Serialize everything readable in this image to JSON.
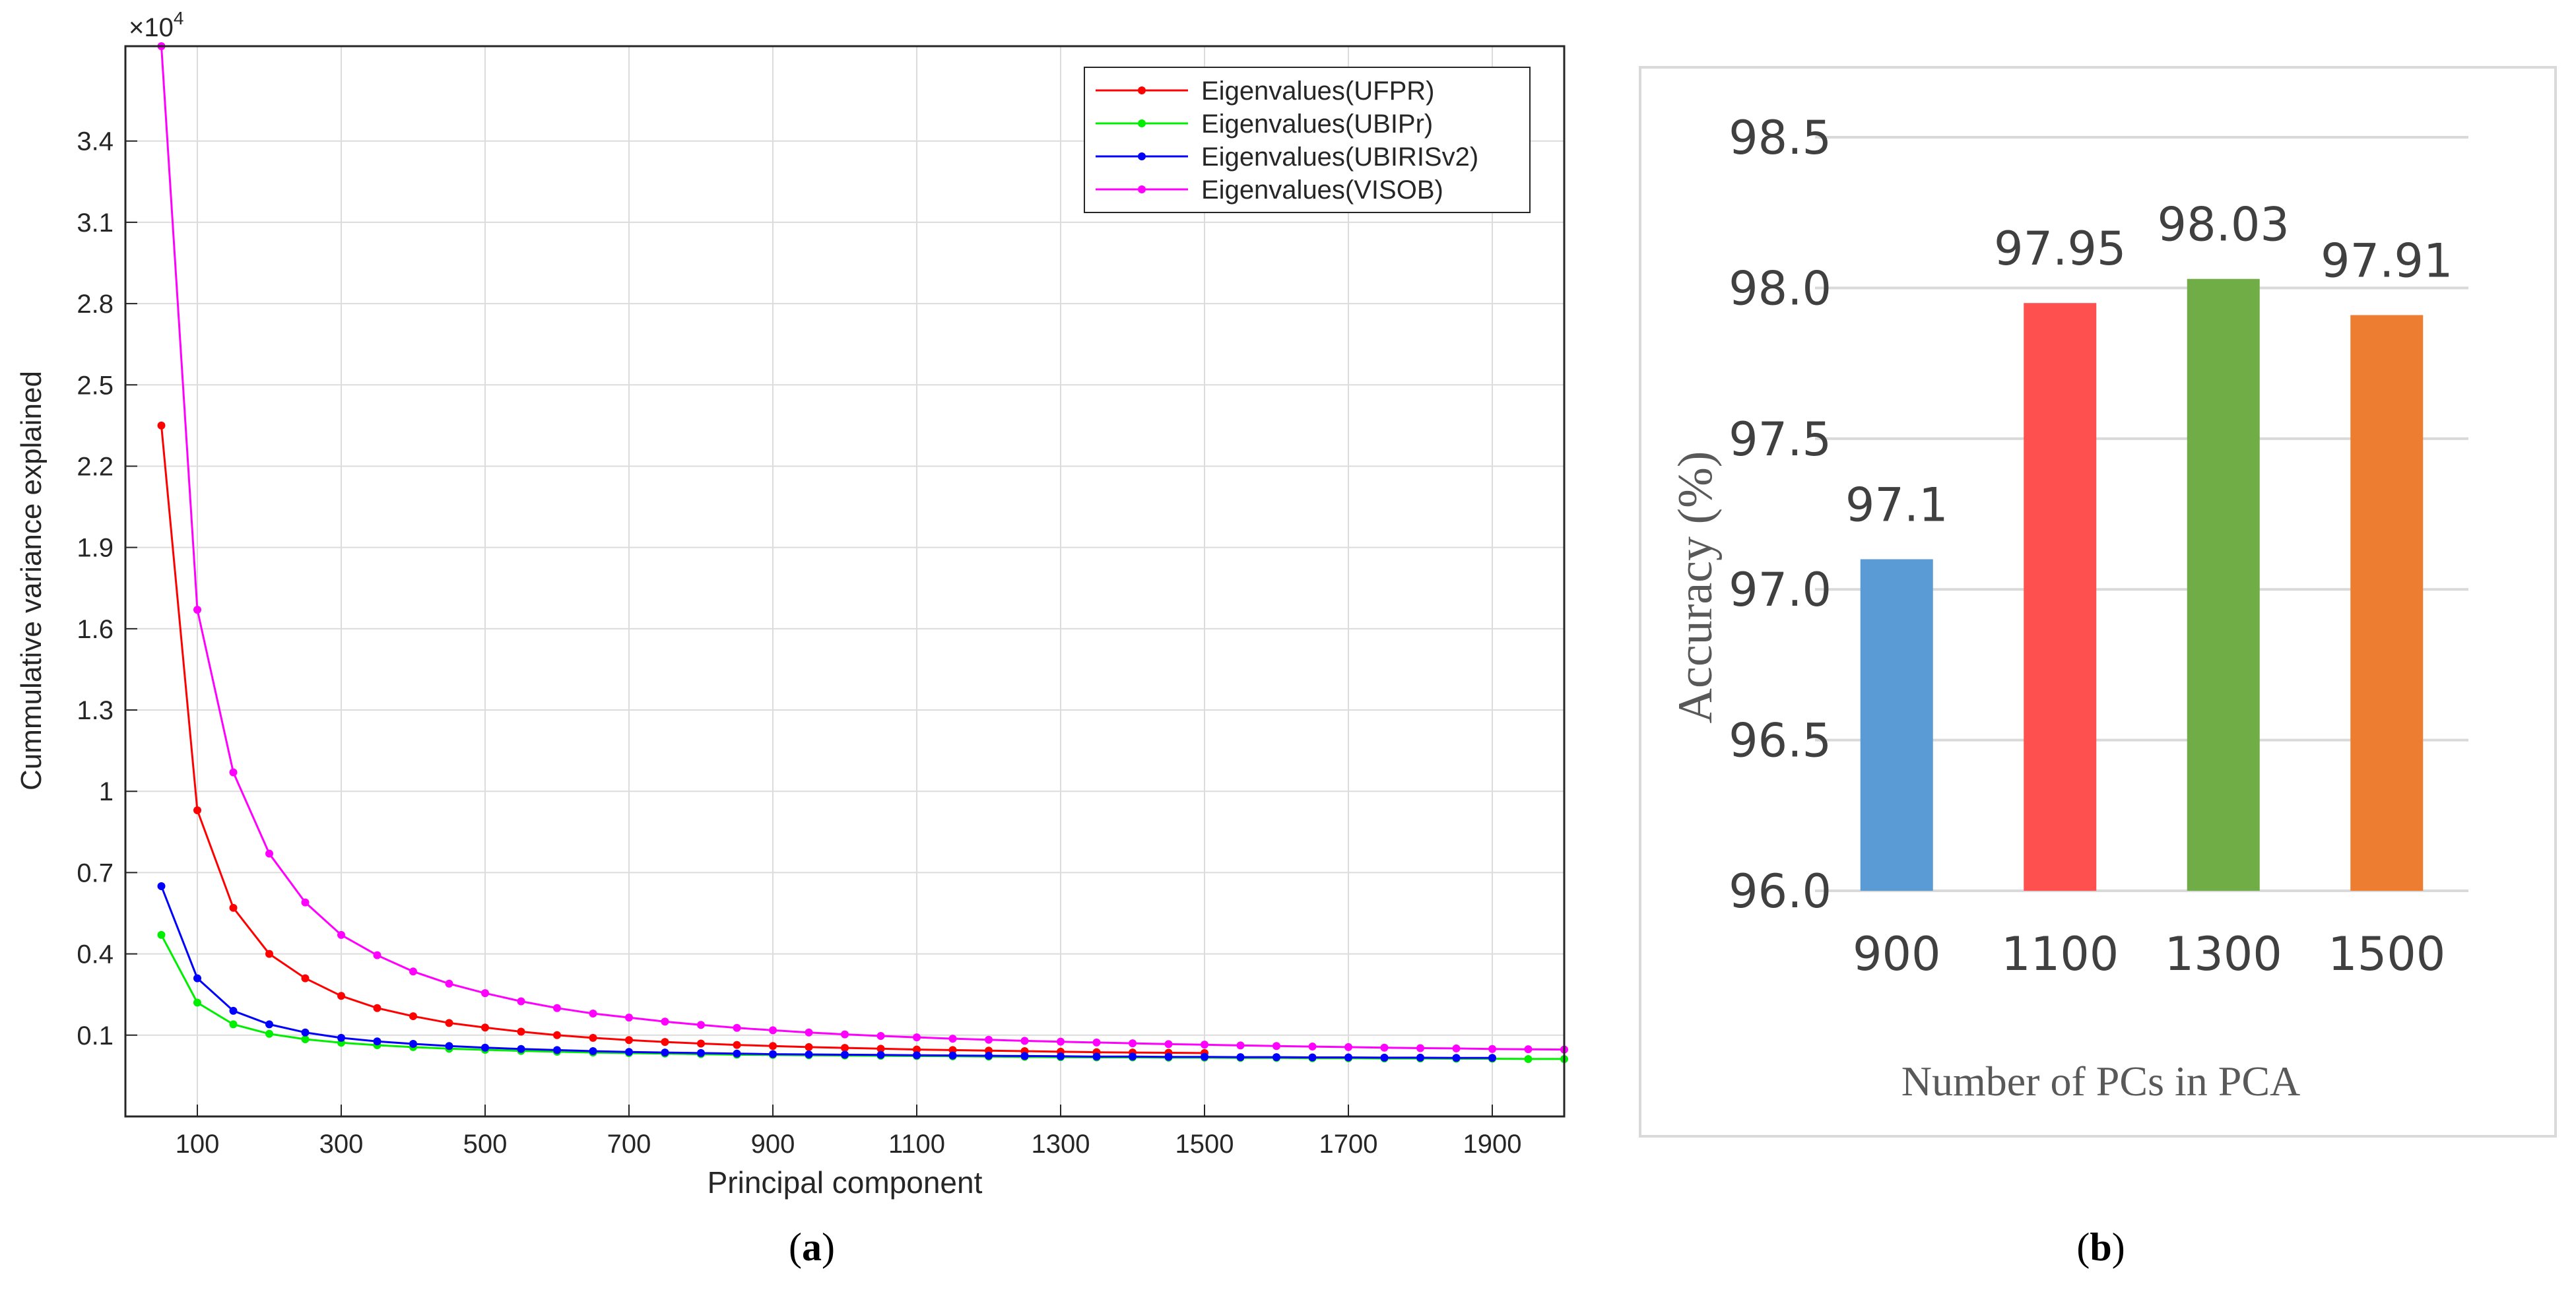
{
  "chart_data": [
    {
      "panel": "(a)",
      "type": "line",
      "xlabel": "Principal component",
      "ylabel": "Cummulative variance explained",
      "exponent_label": "×10",
      "exponent_power": "4",
      "xlim": [
        0,
        2000
      ],
      "ylim": [
        -0.2,
        3.75
      ],
      "xticks": [
        100,
        300,
        500,
        700,
        900,
        1100,
        1300,
        1500,
        1700,
        1900
      ],
      "yticks": [
        0.1,
        0.4,
        0.7,
        1,
        1.3,
        1.6,
        1.9,
        2.2,
        2.5,
        2.8,
        3.1,
        3.4
      ],
      "ytick_labels": [
        "0.1",
        "0.4",
        "0.7",
        "1",
        "1.3",
        "1.6",
        "1.9",
        "2.2",
        "2.5",
        "2.8",
        "3.1",
        "3.4"
      ],
      "grid": true,
      "legend_position": "top-right",
      "series": [
        {
          "name": "Eigenvalues(UFPR)",
          "color": "#ff0000",
          "x": [
            50,
            100,
            150,
            200,
            250,
            300,
            350,
            400,
            450,
            500,
            550,
            600,
            650,
            700,
            750,
            800,
            850,
            900,
            950,
            1000,
            1050,
            1100,
            1150,
            1200,
            1250,
            1300,
            1350,
            1400,
            1450,
            1500
          ],
          "values": [
            2.35,
            0.93,
            0.57,
            0.4,
            0.31,
            0.245,
            0.2,
            0.17,
            0.145,
            0.128,
            0.113,
            0.1,
            0.09,
            0.082,
            0.075,
            0.069,
            0.064,
            0.06,
            0.056,
            0.053,
            0.05,
            0.047,
            0.045,
            0.043,
            0.041,
            0.039,
            0.037,
            0.036,
            0.035,
            0.034
          ]
        },
        {
          "name": "Eigenvalues(UBIPr)",
          "color": "#00ee00",
          "x": [
            50,
            100,
            150,
            200,
            250,
            300,
            350,
            400,
            450,
            500,
            550,
            600,
            650,
            700,
            750,
            800,
            850,
            900,
            950,
            1000,
            1050,
            1100,
            1150,
            1200,
            1250,
            1300,
            1350,
            1400,
            1450,
            1500,
            1550,
            1600,
            1650,
            1700,
            1750,
            1800,
            1850,
            1900,
            1950,
            2000
          ],
          "values": [
            0.47,
            0.22,
            0.14,
            0.105,
            0.085,
            0.072,
            0.063,
            0.056,
            0.05,
            0.046,
            0.042,
            0.039,
            0.036,
            0.034,
            0.032,
            0.03,
            0.028,
            0.027,
            0.026,
            0.025,
            0.024,
            0.023,
            0.022,
            0.021,
            0.02,
            0.019,
            0.018,
            0.018,
            0.017,
            0.017,
            0.016,
            0.016,
            0.015,
            0.015,
            0.014,
            0.014,
            0.013,
            0.013,
            0.012,
            0.012
          ]
        },
        {
          "name": "Eigenvalues(UBIRISv2)",
          "color": "#0000ff",
          "x": [
            50,
            100,
            150,
            200,
            250,
            300,
            350,
            400,
            450,
            500,
            550,
            600,
            650,
            700,
            750,
            800,
            850,
            900,
            950,
            1000,
            1050,
            1100,
            1150,
            1200,
            1250,
            1300,
            1350,
            1400,
            1450,
            1500,
            1550,
            1600,
            1650,
            1700,
            1750,
            1800,
            1850,
            1900
          ],
          "values": [
            0.65,
            0.31,
            0.19,
            0.14,
            0.11,
            0.09,
            0.077,
            0.068,
            0.06,
            0.054,
            0.049,
            0.045,
            0.041,
            0.038,
            0.036,
            0.034,
            0.032,
            0.03,
            0.029,
            0.028,
            0.027,
            0.026,
            0.025,
            0.024,
            0.023,
            0.022,
            0.021,
            0.021,
            0.02,
            0.02,
            0.019,
            0.019,
            0.018,
            0.018,
            0.017,
            0.017,
            0.016,
            0.016
          ]
        },
        {
          "name": "Eigenvalues(VISOB)",
          "color": "#ff00ff",
          "x": [
            50,
            100,
            150,
            200,
            250,
            300,
            350,
            400,
            450,
            500,
            550,
            600,
            650,
            700,
            750,
            800,
            850,
            900,
            950,
            1000,
            1050,
            1100,
            1150,
            1200,
            1250,
            1300,
            1350,
            1400,
            1450,
            1500,
            1550,
            1600,
            1650,
            1700,
            1750,
            1800,
            1850,
            1900,
            1950,
            2000
          ],
          "values": [
            3.75,
            1.67,
            1.07,
            0.77,
            0.59,
            0.47,
            0.395,
            0.335,
            0.29,
            0.255,
            0.225,
            0.2,
            0.18,
            0.165,
            0.15,
            0.138,
            0.127,
            0.118,
            0.11,
            0.103,
            0.097,
            0.092,
            0.087,
            0.083,
            0.079,
            0.076,
            0.073,
            0.07,
            0.067,
            0.065,
            0.062,
            0.06,
            0.058,
            0.056,
            0.054,
            0.052,
            0.051,
            0.049,
            0.048,
            0.047
          ]
        }
      ],
      "caption": "a"
    },
    {
      "panel": "(b)",
      "type": "bar",
      "categories": [
        "900",
        "1100",
        "1300",
        "1500"
      ],
      "values": [
        97.1,
        97.95,
        98.03,
        97.91
      ],
      "value_labels": [
        "97.1",
        "97.95",
        "98.03",
        "97.91"
      ],
      "colors": [
        "#5b9bd5",
        "#ff5050",
        "#70ad47",
        "#ed7d31"
      ],
      "xlabel": "Number of PCs in PCA",
      "ylabel": "Accuracy (%)",
      "ylim": [
        96.0,
        98.5
      ],
      "yticks": [
        96.0,
        96.5,
        97.0,
        97.5,
        98.0,
        98.5
      ],
      "ytick_labels": [
        "96.0",
        "96.5",
        "97.0",
        "97.5",
        "98.0",
        "98.5"
      ],
      "grid": true,
      "caption": "b"
    }
  ]
}
